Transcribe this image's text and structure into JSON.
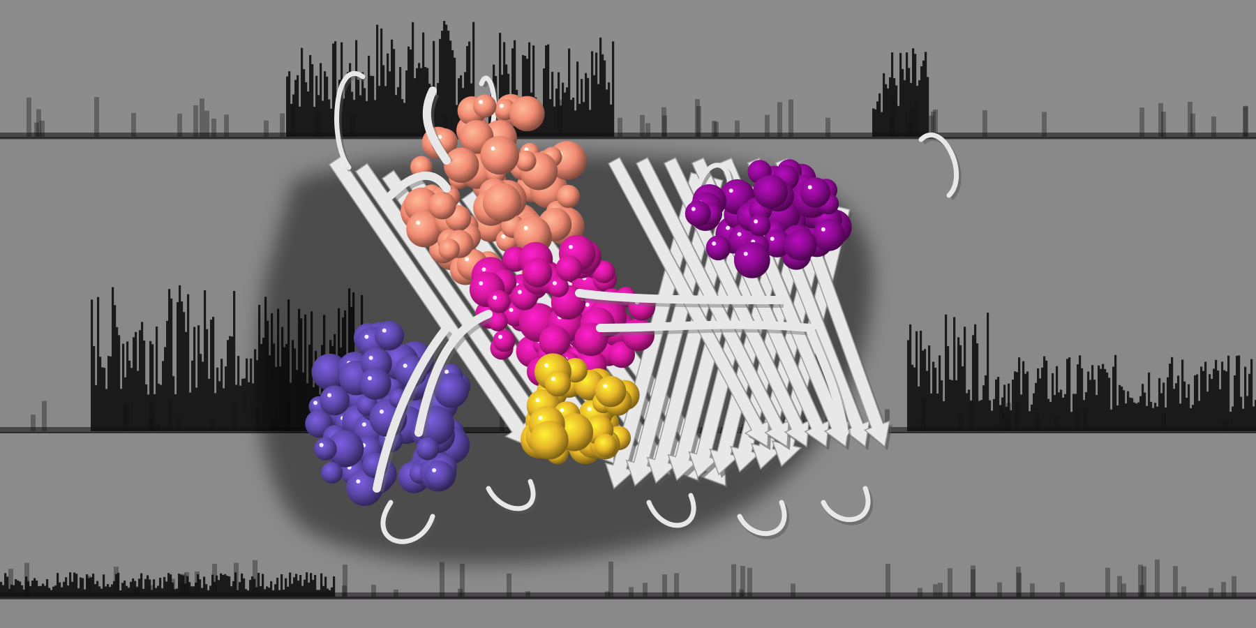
{
  "scene": {
    "description_free": true,
    "background_color": "#8e8d8e",
    "trace_color": "#121112",
    "strand_color": "#e8e8e8",
    "traces": [
      {
        "name": "trace-top"
      },
      {
        "name": "trace-middle"
      },
      {
        "name": "trace-bottom"
      }
    ],
    "surfaces": [
      {
        "name": "salmon-surface",
        "color": "#f08a72"
      },
      {
        "name": "violet-surface",
        "color": "#5b47a8"
      },
      {
        "name": "magenta-surface",
        "color": "#d3189a"
      },
      {
        "name": "purple-surface",
        "color": "#8a0a8e"
      },
      {
        "name": "gold-surface",
        "color": "#e6b428"
      }
    ]
  }
}
